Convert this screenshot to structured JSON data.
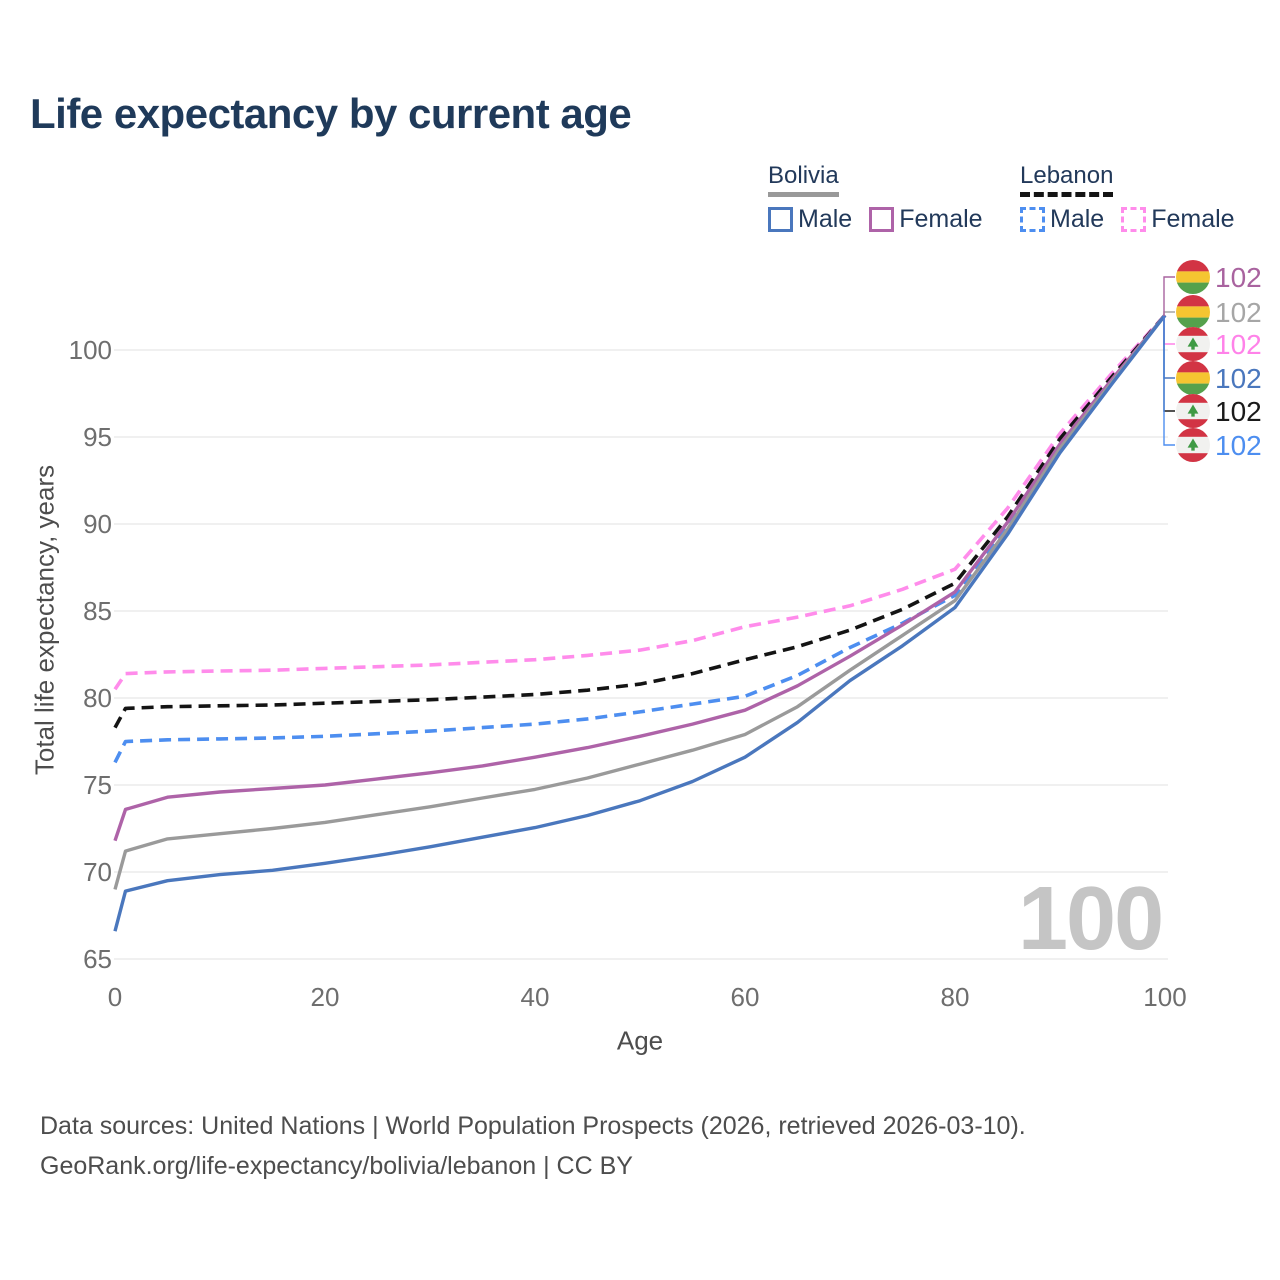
{
  "title": "Life expectancy by current age",
  "watermark": "100",
  "legend": {
    "groups": [
      {
        "label": "Bolivia",
        "line_style": "solid",
        "underline_color": "#999999",
        "items": [
          {
            "label": "Male",
            "color": "#4a77bd"
          },
          {
            "label": "Female",
            "color": "#ae63a8"
          }
        ]
      },
      {
        "label": "Lebanon",
        "line_style": "dashed",
        "underline_color": "#141414",
        "items": [
          {
            "label": "Male",
            "color": "#4d8ef0"
          },
          {
            "label": "Female",
            "color": "#ff8ceb"
          }
        ]
      }
    ]
  },
  "chart_data": {
    "type": "line",
    "title": "Life expectancy by current age",
    "xlabel": "Age",
    "ylabel": "Total life expectancy, years",
    "xlim": [
      0,
      100
    ],
    "ylim": [
      63.5,
      103
    ],
    "xticks": [
      0,
      20,
      40,
      60,
      80,
      100
    ],
    "yticks": [
      65,
      70,
      75,
      80,
      85,
      90,
      95,
      100
    ],
    "grid": "horizontal",
    "legend_position": "top-right",
    "x": [
      0,
      1,
      5,
      10,
      15,
      20,
      25,
      30,
      35,
      40,
      45,
      50,
      55,
      60,
      65,
      70,
      75,
      80,
      85,
      90,
      95,
      100
    ],
    "series": [
      {
        "name": "Lebanon Female",
        "country": "Lebanon",
        "sex": "Female",
        "color": "#ff8ceb",
        "dashed": true,
        "values": [
          80.5,
          81.4,
          81.5,
          81.55,
          81.6,
          81.7,
          81.8,
          81.9,
          82.05,
          82.2,
          82.45,
          82.75,
          83.3,
          84.1,
          84.65,
          85.3,
          86.25,
          87.4,
          90.9,
          95.2,
          98.7,
          102
        ]
      },
      {
        "name": "Lebanon Both sexes",
        "country": "Lebanon",
        "sex": "Both",
        "color": "#141414",
        "dashed": true,
        "values": [
          78.3,
          79.4,
          79.5,
          79.55,
          79.6,
          79.7,
          79.8,
          79.9,
          80.05,
          80.2,
          80.45,
          80.8,
          81.4,
          82.2,
          82.95,
          83.9,
          85.1,
          86.6,
          90.4,
          94.9,
          98.5,
          102
        ]
      },
      {
        "name": "Lebanon Male",
        "country": "Lebanon",
        "sex": "Male",
        "color": "#4d8ef0",
        "dashed": true,
        "values": [
          76.3,
          77.5,
          77.6,
          77.65,
          77.7,
          77.8,
          77.95,
          78.1,
          78.3,
          78.5,
          78.8,
          79.2,
          79.65,
          80.1,
          81.3,
          82.9,
          84.3,
          85.9,
          89.9,
          94.5,
          98.3,
          102
        ]
      },
      {
        "name": "Bolivia Female",
        "country": "Bolivia",
        "sex": "Female",
        "color": "#ae63a8",
        "dashed": false,
        "values": [
          71.8,
          73.6,
          74.3,
          74.6,
          74.8,
          75.0,
          75.35,
          75.7,
          76.1,
          76.6,
          77.15,
          77.8,
          78.5,
          79.3,
          80.7,
          82.4,
          84.2,
          86.1,
          90.1,
          94.6,
          98.35,
          102
        ]
      },
      {
        "name": "Bolivia Both sexes",
        "country": "Bolivia",
        "sex": "Both",
        "color": "#9a9a9a",
        "dashed": false,
        "values": [
          69.0,
          71.2,
          71.9,
          72.2,
          72.5,
          72.85,
          73.3,
          73.75,
          74.25,
          74.75,
          75.4,
          76.2,
          77.0,
          77.9,
          79.5,
          81.6,
          83.6,
          85.6,
          89.7,
          94.35,
          98.2,
          102
        ]
      },
      {
        "name": "Bolivia Male",
        "country": "Bolivia",
        "sex": "Male",
        "color": "#4a77bd",
        "dashed": false,
        "values": [
          66.6,
          68.9,
          69.5,
          69.85,
          70.1,
          70.5,
          70.95,
          71.45,
          72.0,
          72.55,
          73.25,
          74.1,
          75.2,
          76.6,
          78.6,
          81.0,
          83.0,
          85.2,
          89.4,
          94.1,
          98.1,
          102
        ]
      }
    ],
    "end_labels": [
      {
        "flag": "bolivia",
        "label": "102",
        "color": "#a9639f",
        "series": "Bolivia Female"
      },
      {
        "flag": "bolivia",
        "label": "102",
        "color": "#a6a6a6",
        "series": "Bolivia Both sexes"
      },
      {
        "flag": "lebanon",
        "label": "102",
        "color": "#ff82e9",
        "series": "Lebanon Female"
      },
      {
        "flag": "bolivia",
        "label": "102",
        "color": "#4a77bd",
        "series": "Bolivia Male"
      },
      {
        "flag": "lebanon",
        "label": "102",
        "color": "#1a1a1a",
        "series": "Lebanon Both sexes"
      },
      {
        "flag": "lebanon",
        "label": "102",
        "color": "#4d8ef0",
        "series": "Lebanon Male"
      }
    ]
  },
  "footer": {
    "line1": "Data sources: United Nations | World Population Prospects (2026, retrieved 2026-03-10).",
    "line2": "GeoRank.org/life-expectancy/bolivia/lebanon | CC BY"
  }
}
